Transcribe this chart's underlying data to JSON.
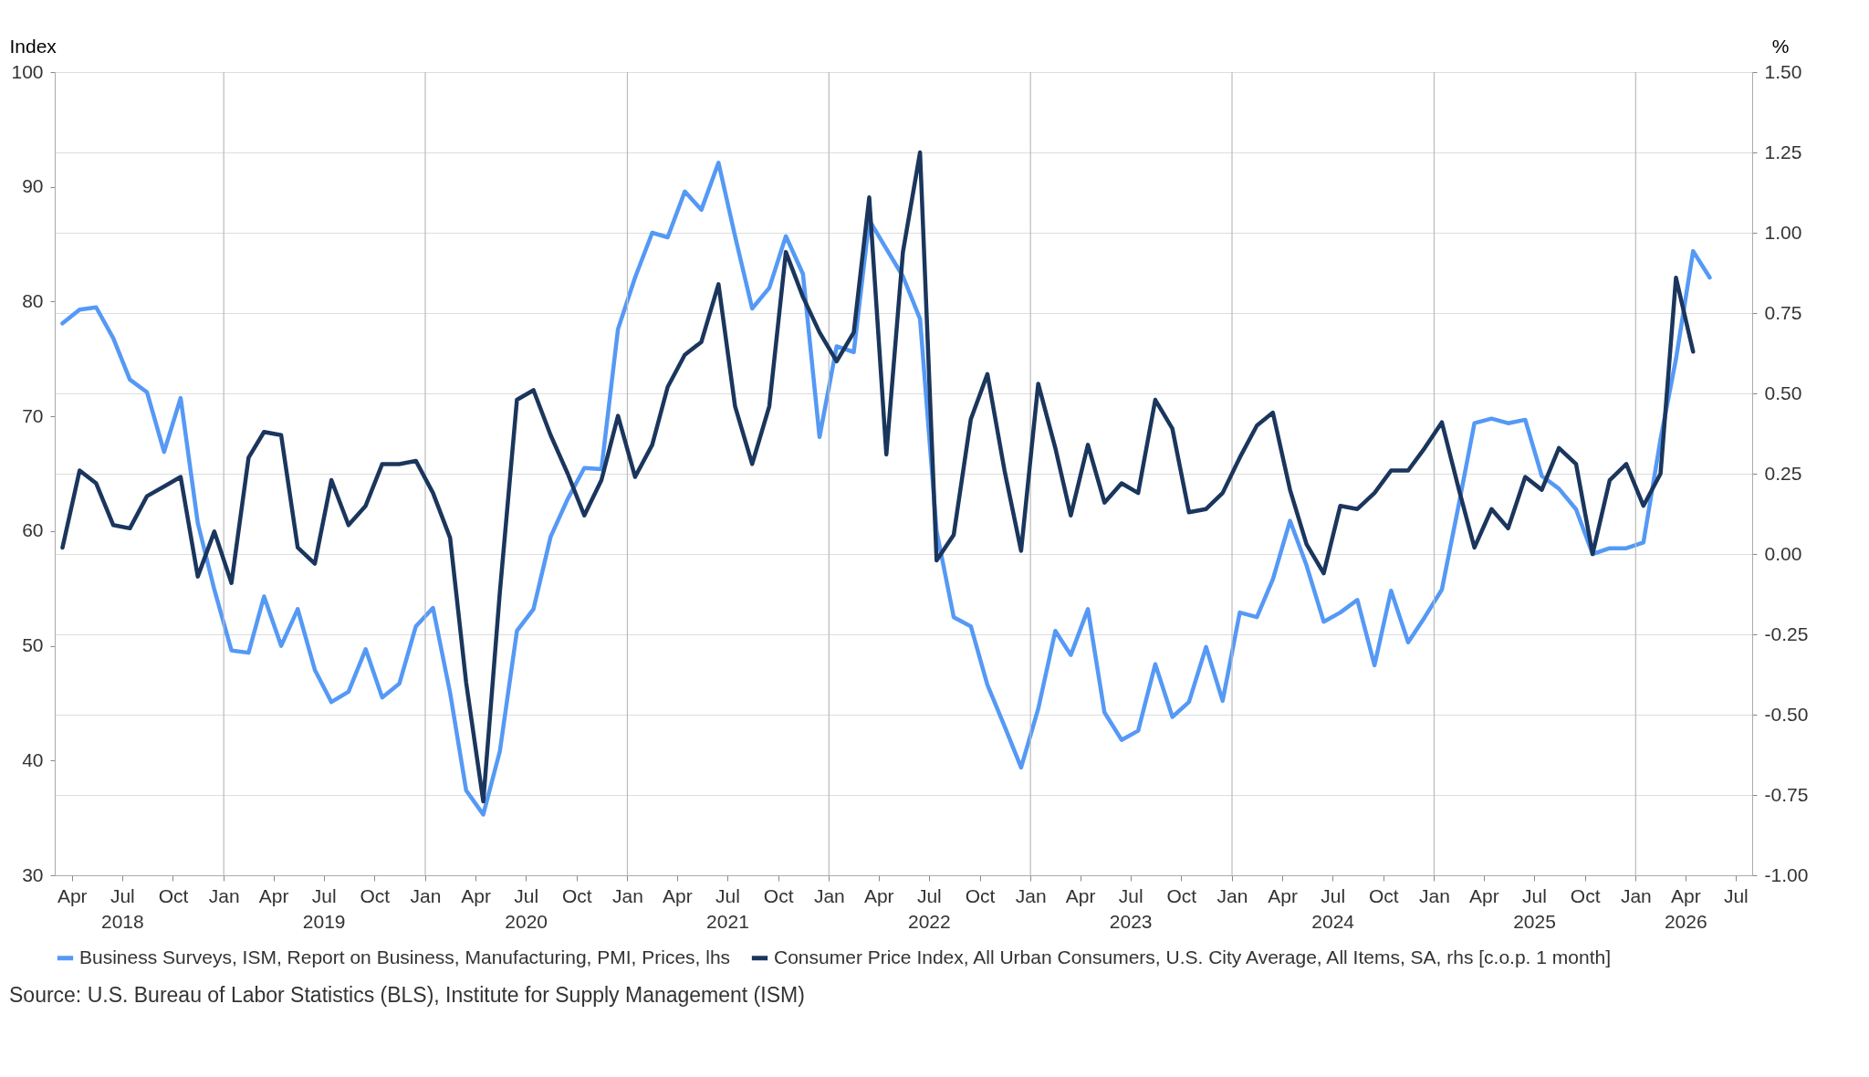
{
  "chart_data": {
    "type": "line",
    "ylabel": "Index",
    "y2label": "%",
    "x": [
      "2018-03-15",
      "2018-04-15",
      "2018-05-15",
      "2018-06-15",
      "2018-07-15",
      "2018-08-15",
      "2018-09-15",
      "2018-10-15",
      "2018-11-15",
      "2018-12-15",
      "2019-01-15",
      "2019-02-15",
      "2019-03-15",
      "2019-04-15",
      "2019-05-15",
      "2019-06-15",
      "2019-07-15",
      "2019-08-15",
      "2019-09-15",
      "2019-10-15",
      "2019-11-15",
      "2019-12-15",
      "2020-01-15",
      "2020-02-15",
      "2020-03-15",
      "2020-04-15",
      "2020-05-15",
      "2020-06-15",
      "2020-07-15",
      "2020-08-15",
      "2020-09-15",
      "2020-10-15",
      "2020-11-15",
      "2020-12-15",
      "2021-01-15",
      "2021-02-15",
      "2021-03-15",
      "2021-04-15",
      "2021-05-15",
      "2021-06-15",
      "2021-07-15",
      "2021-08-15",
      "2021-09-15",
      "2021-10-15",
      "2021-11-15",
      "2021-12-15",
      "2022-01-15",
      "2022-02-15",
      "2022-03-15",
      "2022-04-15",
      "2022-05-15",
      "2022-06-15",
      "2022-07-15",
      "2022-08-15",
      "2022-09-15",
      "2022-10-15",
      "2022-11-15",
      "2022-12-15",
      "2023-01-15",
      "2023-02-15",
      "2023-03-15",
      "2023-04-15",
      "2023-05-15",
      "2023-06-15",
      "2023-07-15",
      "2023-08-15",
      "2023-09-15",
      "2023-10-15",
      "2023-11-15",
      "2023-12-15",
      "2024-01-15",
      "2024-02-15",
      "2024-03-15",
      "2024-04-15",
      "2024-05-15",
      "2024-06-15",
      "2024-07-15",
      "2024-08-15",
      "2024-09-15",
      "2024-10-15",
      "2024-11-15",
      "2024-12-15",
      "2025-01-15",
      "2025-02-15",
      "2025-03-15",
      "2025-04-15",
      "2025-05-15",
      "2025-06-15",
      "2025-07-15",
      "2025-08-15",
      "2025-09-15",
      "2025-10-15",
      "2025-11-15",
      "2025-12-15",
      "2026-01-15",
      "2026-02-15",
      "2026-03-15",
      "2026-04-15",
      "2026-05-15"
    ],
    "series": [
      {
        "name": "Business Surveys, ISM, Report on Business, Manufacturing, PMI, Prices, lhs",
        "color": "#5599f5",
        "values": [
          78.1,
          79.3,
          79.5,
          76.8,
          73.2,
          72.1,
          66.9,
          71.6,
          60.7,
          54.9,
          49.6,
          49.4,
          54.3,
          50.0,
          53.2,
          47.9,
          45.1,
          46.0,
          49.7,
          45.5,
          46.7,
          51.7,
          53.3,
          45.9,
          37.4,
          35.3,
          40.8,
          51.3,
          53.2,
          59.5,
          62.8,
          65.5,
          65.4,
          77.6,
          82.1,
          86.0,
          85.6,
          89.6,
          88.0,
          92.1,
          85.7,
          79.4,
          81.2,
          85.7,
          82.4,
          68.2,
          76.1,
          75.6,
          87.1,
          84.6,
          82.2,
          78.5,
          60.0,
          52.5,
          51.7,
          46.6,
          43.0,
          39.4,
          44.5,
          51.3,
          49.2,
          53.2,
          44.2,
          41.8,
          42.6,
          48.4,
          43.8,
          45.1,
          49.9,
          45.2,
          52.9,
          52.5,
          55.8,
          60.9,
          57.0,
          52.1,
          52.9,
          54.0,
          48.3,
          54.8,
          50.3,
          52.5,
          54.9,
          62.4,
          69.4,
          69.8,
          69.4,
          69.7,
          64.8,
          63.7,
          61.9,
          58.0,
          58.5,
          58.5,
          59.0,
          68.0,
          75.0,
          84.4,
          82.1
        ]
      },
      {
        "name": "Consumer Price Index, All Urban Consumers, U.S. City Average, All Items, SA, rhs [c.o.p. 1 month]",
        "color": "#1b365d",
        "axis": "y2",
        "values": [
          0.02,
          0.26,
          0.22,
          0.09,
          0.08,
          0.18,
          0.21,
          0.24,
          -0.07,
          0.07,
          -0.09,
          0.3,
          0.38,
          0.37,
          0.02,
          -0.03,
          0.23,
          0.09,
          0.15,
          0.28,
          0.28,
          0.29,
          0.19,
          0.05,
          -0.4,
          -0.77,
          -0.12,
          0.48,
          0.51,
          0.37,
          0.25,
          0.12,
          0.23,
          0.43,
          0.24,
          0.34,
          0.52,
          0.62,
          0.66,
          0.84,
          0.46,
          0.28,
          0.46,
          0.94,
          0.8,
          0.69,
          0.6,
          0.69,
          1.11,
          0.31,
          0.94,
          1.25,
          -0.02,
          0.06,
          0.42,
          0.56,
          0.26,
          0.01,
          0.53,
          0.33,
          0.12,
          0.34,
          0.16,
          0.22,
          0.19,
          0.48,
          0.39,
          0.13,
          0.14,
          0.19,
          0.3,
          0.4,
          0.44,
          0.2,
          0.03,
          -0.06,
          0.15,
          0.14,
          0.19,
          0.26,
          0.26,
          0.33,
          0.41,
          0.2,
          0.02,
          0.14,
          0.08,
          0.24,
          0.2,
          0.33,
          0.28,
          0.0,
          0.23,
          0.28,
          0.15,
          0.25,
          0.86,
          0.63,
          null
        ]
      }
    ],
    "xlim": [
      "2018-03-01",
      "2026-07-31"
    ],
    "xticks": [
      {
        "value": "2018-04-01",
        "label": "Apr"
      },
      {
        "value": "2018-07-01",
        "label": "Jul\n2018"
      },
      {
        "value": "2018-10-01",
        "label": "Oct"
      },
      {
        "value": "2019-01-01",
        "label": "Jan"
      },
      {
        "value": "2019-04-01",
        "label": "Apr"
      },
      {
        "value": "2019-07-01",
        "label": "Jul\n2019"
      },
      {
        "value": "2019-10-01",
        "label": "Oct"
      },
      {
        "value": "2020-01-01",
        "label": "Jan"
      },
      {
        "value": "2020-04-01",
        "label": "Apr"
      },
      {
        "value": "2020-07-01",
        "label": "Jul\n2020"
      },
      {
        "value": "2020-10-01",
        "label": "Oct"
      },
      {
        "value": "2021-01-01",
        "label": "Jan"
      },
      {
        "value": "2021-04-01",
        "label": "Apr"
      },
      {
        "value": "2021-07-01",
        "label": "Jul\n2021"
      },
      {
        "value": "2021-10-01",
        "label": "Oct"
      },
      {
        "value": "2022-01-01",
        "label": "Jan"
      },
      {
        "value": "2022-04-01",
        "label": "Apr"
      },
      {
        "value": "2022-07-01",
        "label": "Jul\n2022"
      },
      {
        "value": "2022-10-01",
        "label": "Oct"
      },
      {
        "value": "2023-01-01",
        "label": "Jan"
      },
      {
        "value": "2023-04-01",
        "label": "Apr"
      },
      {
        "value": "2023-07-01",
        "label": "Jul\n2023"
      },
      {
        "value": "2023-10-01",
        "label": "Oct"
      },
      {
        "value": "2024-01-01",
        "label": "Jan"
      },
      {
        "value": "2024-04-01",
        "label": "Apr"
      },
      {
        "value": "2024-07-01",
        "label": "Jul\n2024"
      },
      {
        "value": "2024-10-01",
        "label": "Oct"
      },
      {
        "value": "2025-01-01",
        "label": "Jan"
      },
      {
        "value": "2025-04-01",
        "label": "Apr"
      },
      {
        "value": "2025-07-01",
        "label": "Jul\n2025"
      },
      {
        "value": "2025-10-01",
        "label": "Oct"
      },
      {
        "value": "2026-01-01",
        "label": "Jan"
      },
      {
        "value": "2026-04-01",
        "label": "Apr\n2026"
      },
      {
        "value": "2026-07-01",
        "label": "Jul"
      }
    ],
    "ylim": [
      30,
      100
    ],
    "yticks": [
      30,
      40,
      50,
      60,
      70,
      80,
      90,
      100
    ],
    "y2lim": [
      -1.0,
      1.5
    ],
    "y2ticks": [
      {
        "value": -1.0,
        "label": "-1.00"
      },
      {
        "value": -0.75,
        "label": "-0.75"
      },
      {
        "value": -0.5,
        "label": "-0.50"
      },
      {
        "value": -0.25,
        "label": "-0.25"
      },
      {
        "value": 0,
        "label": "0.00"
      },
      {
        "value": 0.25,
        "label": "0.25"
      },
      {
        "value": 0.5,
        "label": "0.50"
      },
      {
        "value": 0.75,
        "label": "0.75"
      },
      {
        "value": 1.0,
        "label": "1.00"
      },
      {
        "value": 1.25,
        "label": "1.25"
      },
      {
        "value": 1.5,
        "label": "1.50"
      }
    ],
    "grid": true,
    "legend": "bottom",
    "marker": "none",
    "line_style": "solid",
    "annotations": [
      "Source: U.S. Bureau of Labor Statistics (BLS), Institute for Supply Management (ISM)"
    ]
  }
}
